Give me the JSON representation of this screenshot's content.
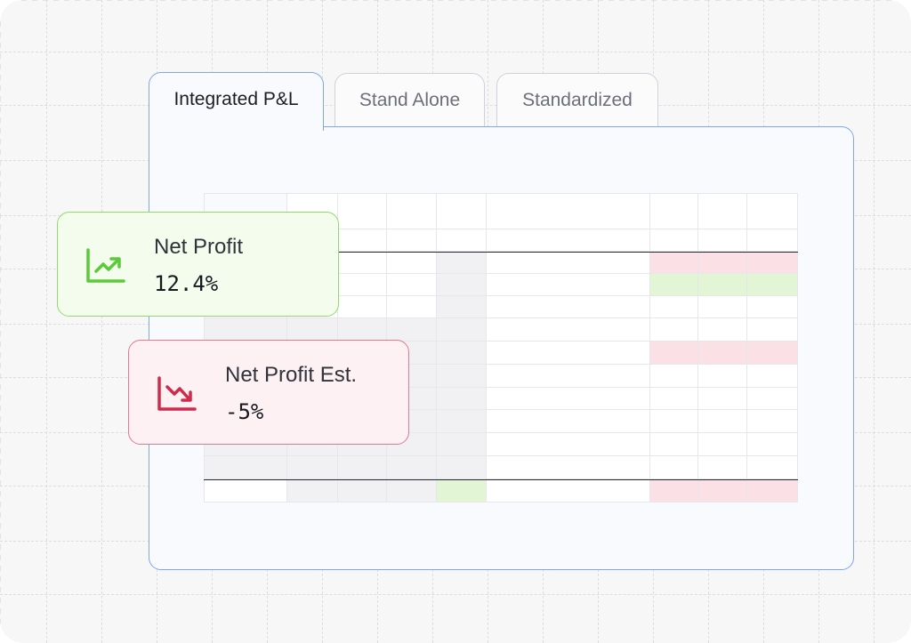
{
  "tabs": [
    {
      "label": "Integrated P&L",
      "active": true
    },
    {
      "label": "Stand Alone",
      "active": false
    },
    {
      "label": "Standardized",
      "active": false
    }
  ],
  "cards": {
    "net_profit": {
      "label": "Net Profit",
      "value": "12.4%",
      "trend": "up",
      "icon": "trending-up-chart-icon",
      "color": "#5cc93a"
    },
    "net_profit_est": {
      "label": "Net Profit Est.",
      "value": "-5%",
      "trend": "down",
      "icon": "trending-down-chart-icon",
      "color": "#d02a4c"
    }
  },
  "colors": {
    "accent": "#7fa6ef",
    "positive_fill": "#e2f6d6",
    "negative_fill": "#fbe0e6",
    "muted_fill": "#f1f1f3"
  }
}
